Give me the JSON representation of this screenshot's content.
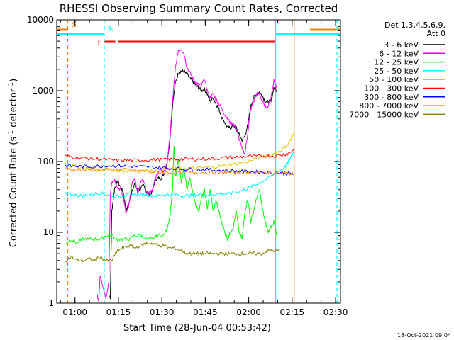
{
  "chart_data": {
    "type": "line",
    "title": "RHESSI Observing Summary Count Rates, Corrected",
    "xlabel": "Start Time (28-Jun-04 00:53:42)",
    "ylabel_main": "Corrected Count Rate (s",
    "ylabel_sup1": "-1",
    "ylabel_mid": " detector",
    "ylabel_sup2": "-1",
    "ylabel_end": ")",
    "x_unit": "minutes after 00:53:42",
    "xlim": [
      0,
      98
    ],
    "ylim": [
      1,
      10000
    ],
    "y_scale": "log",
    "x_ticks": [
      {
        "x": 6.3,
        "label": "01:00"
      },
      {
        "x": 21.3,
        "label": "01:15"
      },
      {
        "x": 36.3,
        "label": "01:30"
      },
      {
        "x": 51.3,
        "label": "01:45"
      },
      {
        "x": 66.3,
        "label": "02:00"
      },
      {
        "x": 81.3,
        "label": "02:15"
      },
      {
        "x": 96.3,
        "label": "02:30"
      }
    ],
    "y_ticks": [
      {
        "y": 1,
        "label": "1"
      },
      {
        "y": 10,
        "label": "10"
      },
      {
        "y": 100,
        "label": "100"
      },
      {
        "y": 1000,
        "label": "1000"
      },
      {
        "y": 10000,
        "label": "10000"
      }
    ],
    "legend_header": [
      "Det 1,3,4,5,6,9,",
      "Att 0"
    ],
    "legend_position": "right",
    "series": [
      {
        "name": "3 - 6 keV",
        "color": "#000000",
        "x": [
          18.0,
          18.5,
          19.0,
          20.0,
          21.0,
          22.0,
          23.0,
          24.0,
          25.0,
          26.0,
          27.0,
          28.0,
          29.0,
          30.0,
          31.0,
          32.0,
          33.0,
          34.0,
          35.0,
          36.0,
          37.0,
          38.0,
          39.0,
          40.0,
          41.0,
          42.0,
          43.0,
          44.0,
          45.0,
          46.0,
          47.0,
          48.0,
          49.0,
          50.0,
          51.0,
          52.0,
          53.0,
          54.0,
          55.0,
          56.0,
          57.0,
          58.0,
          59.0,
          60.0,
          61.0,
          62.0,
          63.0,
          64.0,
          65.0,
          66.0,
          67.0,
          68.0,
          69.0,
          70.0,
          71.0,
          72.0,
          73.0,
          74.0,
          75.0,
          76.0
        ],
        "y": [
          1.3,
          1.2,
          20,
          42,
          52,
          44,
          36,
          20,
          26,
          40,
          48,
          38,
          42,
          46,
          38,
          34,
          38,
          56,
          58,
          58,
          66,
          90,
          190,
          620,
          1300,
          1800,
          1900,
          1850,
          1700,
          1500,
          1350,
          1200,
          1100,
          1000,
          1050,
          900,
          700,
          800,
          650,
          550,
          420,
          360,
          300,
          300,
          320,
          300,
          240,
          200,
          230,
          330,
          600,
          800,
          900,
          950,
          850,
          700,
          700,
          700,
          1100,
          1000
        ]
      },
      {
        "name": "6 - 12 keV",
        "color": "#ff00ff",
        "x": [
          14.0,
          14.5,
          15.0,
          17.0,
          18.0,
          18.5,
          19.0,
          20.0,
          21.0,
          22.0,
          23.0,
          24.0,
          25.0,
          26.0,
          27.0,
          28.0,
          29.0,
          30.0,
          31.0,
          32.0,
          33.0,
          34.0,
          35.0,
          36.0,
          37.0,
          38.0,
          39.0,
          40.0,
          41.0,
          42.0,
          43.0,
          44.0,
          45.0,
          46.0,
          47.0,
          48.0,
          49.0,
          50.0,
          51.0,
          52.0,
          53.0,
          54.0,
          55.0,
          56.0,
          57.0,
          58.0,
          59.0,
          60.0,
          61.0,
          62.0,
          63.0,
          64.0,
          65.0,
          66.0,
          67.0,
          68.0,
          69.0,
          70.0,
          71.0,
          72.0,
          73.0,
          74.0,
          75.0,
          76.0
        ],
        "y": [
          1.3,
          1.1,
          2.5,
          1.2,
          2,
          35,
          50,
          55,
          42,
          42,
          30,
          18,
          25,
          50,
          58,
          35,
          52,
          56,
          36,
          38,
          40,
          55,
          72,
          75,
          72,
          90,
          200,
          700,
          2100,
          3700,
          3900,
          3300,
          2100,
          1800,
          1500,
          1300,
          1200,
          1200,
          1450,
          1000,
          800,
          900,
          750,
          650,
          560,
          460,
          400,
          350,
          340,
          280,
          210,
          150,
          130,
          260,
          550,
          700,
          900,
          900,
          700,
          600,
          600,
          800,
          1400,
          1100
        ]
      },
      {
        "name": "12 - 25 keV",
        "color": "#00ff00",
        "x": [
          3.0,
          5,
          7,
          9,
          11,
          13,
          15,
          17,
          19,
          21,
          23,
          25,
          27,
          29,
          31,
          33,
          35,
          37,
          38,
          39,
          40,
          40.5,
          41,
          42,
          43,
          44,
          45,
          46,
          47,
          48,
          49,
          50,
          51,
          52,
          53,
          54,
          55,
          56,
          57,
          58,
          59,
          60,
          61,
          62,
          63,
          64,
          65,
          66,
          67,
          68,
          69,
          70,
          71,
          72,
          73,
          74,
          75,
          76
        ],
        "y": [
          7,
          8,
          7,
          8,
          8,
          8,
          8,
          9,
          9,
          8,
          8,
          8,
          9,
          9,
          8,
          8,
          9,
          9,
          11,
          16,
          40,
          170,
          60,
          110,
          50,
          80,
          40,
          60,
          35,
          25,
          20,
          30,
          40,
          22,
          40,
          20,
          28,
          20,
          14,
          10,
          8,
          10,
          12,
          20,
          10,
          8,
          20,
          30,
          14,
          20,
          30,
          40,
          22,
          14,
          10,
          12,
          14,
          9
        ]
      },
      {
        "name": "25 - 50 keV",
        "color": "#00ffff",
        "x": [
          3,
          5,
          7,
          9,
          11,
          13,
          15,
          17,
          19,
          21,
          23,
          25,
          27,
          29,
          31,
          33,
          35,
          37,
          39,
          41,
          43,
          45,
          47,
          49,
          51,
          53,
          55,
          57,
          59,
          61,
          63,
          65,
          67,
          69,
          71,
          73,
          75,
          77,
          79,
          80,
          81,
          82
        ],
        "y": [
          35,
          34,
          33,
          33,
          34,
          35,
          36,
          34,
          33,
          32,
          33,
          34,
          35,
          34,
          34,
          33,
          33,
          34,
          34,
          34,
          33,
          33,
          33,
          34,
          34,
          34,
          35,
          35,
          35,
          36,
          38,
          40,
          44,
          48,
          52,
          58,
          66,
          74,
          85,
          100,
          120,
          140
        ]
      },
      {
        "name": "50 - 100 keV",
        "color": "#e6c600",
        "x": [
          3,
          6,
          9,
          12,
          15,
          18,
          21,
          24,
          27,
          30,
          33,
          36,
          39,
          42,
          45,
          48,
          51,
          54,
          57,
          60,
          63,
          66,
          69,
          72,
          75,
          78,
          80,
          82
        ],
        "y": [
          90,
          85,
          82,
          80,
          78,
          76,
          75,
          74,
          73,
          74,
          75,
          76,
          78,
          80,
          80,
          80,
          82,
          84,
          86,
          90,
          95,
          100,
          110,
          120,
          130,
          150,
          180,
          250
        ]
      },
      {
        "name": "100 - 300 keV",
        "color": "#ff0000",
        "x": [
          3,
          6,
          9,
          12,
          15,
          18,
          21,
          24,
          27,
          30,
          33,
          36,
          39,
          42,
          45,
          48,
          51,
          54,
          57,
          60,
          63,
          66,
          69,
          72,
          75,
          78,
          80,
          82
        ],
        "y": [
          120,
          115,
          112,
          110,
          108,
          105,
          104,
          104,
          104,
          105,
          106,
          106,
          107,
          108,
          108,
          108,
          109,
          110,
          112,
          115,
          116,
          118,
          118,
          120,
          120,
          125,
          130,
          150
        ]
      },
      {
        "name": "300 - 800 keV",
        "color": "#0000ff",
        "x": [
          3,
          6,
          9,
          12,
          15,
          18,
          21,
          24,
          27,
          30,
          33,
          36,
          39,
          42,
          45,
          48,
          51,
          54,
          57,
          60,
          63,
          66,
          69,
          72,
          75,
          78,
          80,
          82
        ],
        "y": [
          88,
          86,
          85,
          85,
          86,
          88,
          87,
          86,
          85,
          84,
          83,
          82,
          80,
          79,
          78,
          77,
          77,
          76,
          75,
          74,
          73,
          72,
          71,
          70,
          70,
          69,
          68,
          66
        ]
      },
      {
        "name": "800 - 7000 keV",
        "color": "#ff8000",
        "x": [
          3,
          6,
          9,
          12,
          15,
          18,
          21,
          24,
          27,
          30,
          33,
          36,
          39,
          42,
          45,
          48,
          51,
          54,
          57,
          60,
          63,
          66,
          69,
          72,
          75,
          78,
          80,
          82
        ],
        "y": [
          78,
          77,
          76,
          76,
          76,
          77,
          77,
          76,
          75,
          73,
          71,
          70,
          70,
          70,
          70,
          70,
          70,
          70,
          70,
          70,
          70,
          70,
          70,
          70,
          70,
          69,
          68,
          65
        ]
      },
      {
        "name": "7000 - 15000 keV",
        "color": "#808000",
        "x": [
          3,
          5,
          7,
          9,
          11,
          13,
          15,
          17,
          19,
          21,
          23,
          25,
          27,
          29,
          31,
          33,
          35,
          37,
          39,
          41,
          43,
          45,
          47,
          49,
          51,
          53,
          55,
          57,
          59,
          61,
          63,
          65,
          67,
          69,
          71,
          73,
          75,
          77
        ],
        "y": [
          4,
          4.5,
          4,
          4,
          4.2,
          4,
          4.5,
          4,
          4,
          5.5,
          6,
          6.5,
          6,
          6.5,
          7,
          7,
          6.5,
          6.5,
          6,
          6,
          5.5,
          5,
          5,
          5,
          5,
          5,
          5,
          5,
          5,
          5,
          5,
          5,
          5,
          5,
          5,
          5.5,
          5.5,
          5.5
        ]
      }
    ],
    "flags": [
      {
        "label": "S",
        "color": "#ff8000",
        "segments": [
          [
            0,
            3.8
          ],
          [
            87.5,
            98
          ]
        ]
      },
      {
        "label": "N",
        "color": "#00ffff",
        "segments": [
          [
            0,
            16.5
          ],
          [
            75.5,
            98
          ]
        ]
      },
      {
        "label": "F",
        "color": "#ff0000",
        "segments": [
          [
            16.5,
            20.2
          ],
          [
            21.2,
            75.5
          ]
        ]
      }
    ],
    "vertical_lines": [
      {
        "x": 3.8,
        "color": "#ff8000",
        "style": "dash"
      },
      {
        "x": 16.4,
        "color": "#00ffff",
        "style": "dash"
      },
      {
        "x": 75.6,
        "color": "#00ffff",
        "style": "solid"
      },
      {
        "x": 82.0,
        "color": "#ff8000",
        "style": "solid"
      },
      {
        "x": 96.8,
        "color": "#00ffff",
        "style": "dash"
      }
    ],
    "footer_date": "18-Oct-2021 09:04"
  }
}
